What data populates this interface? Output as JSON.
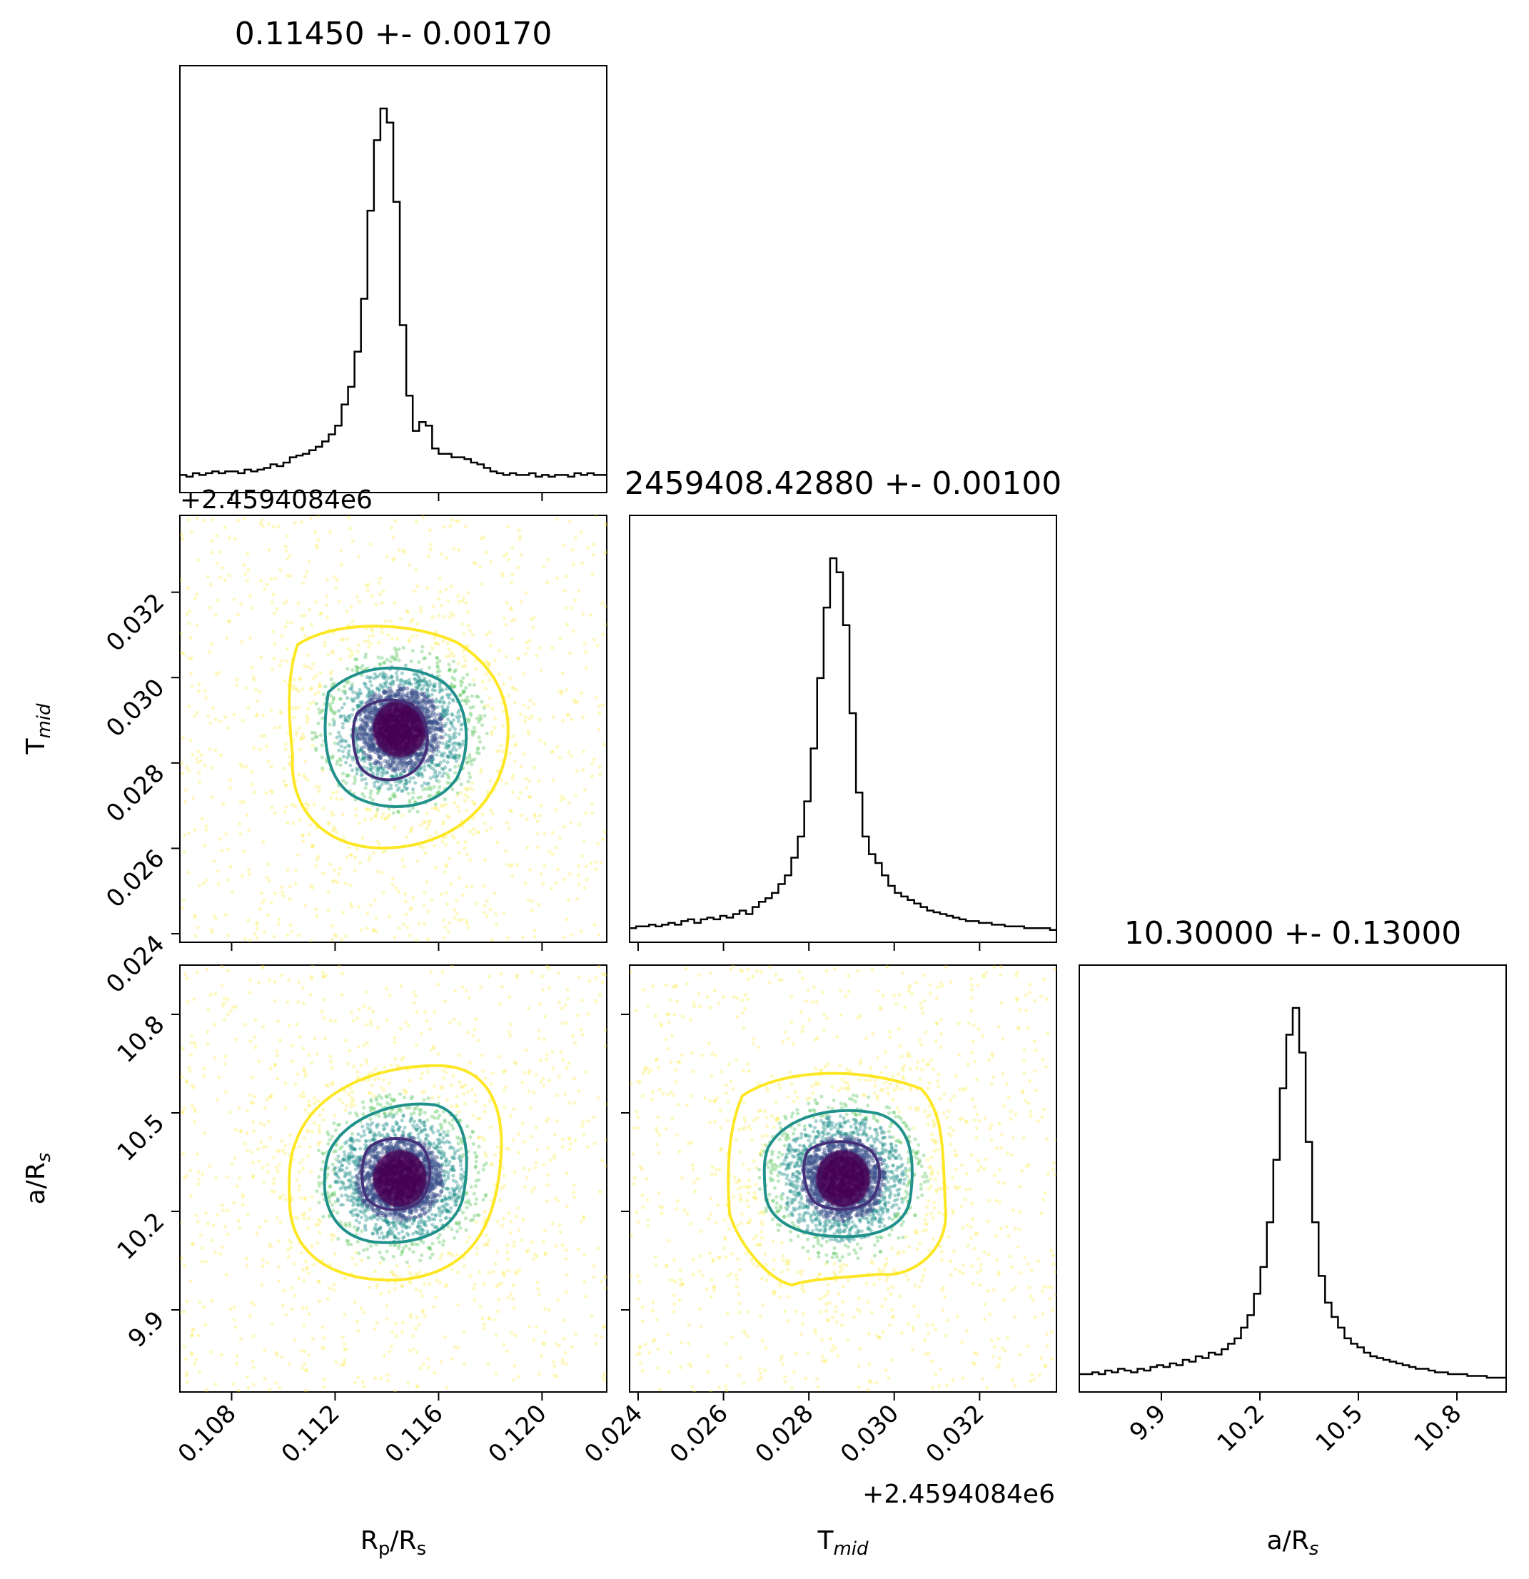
{
  "figure": {
    "type": "corner-plot",
    "x_axis_labels": [
      "R",
      "T",
      "a/R"
    ],
    "y_axis_labels": [
      "T",
      "a/R"
    ]
  },
  "labels": {
    "rp_rs": {
      "main": "R",
      "sub1": "p",
      "mid": "/R",
      "sub2": "s"
    },
    "tmid": {
      "main": "T",
      "sub1": "mid"
    },
    "a_rs": {
      "main": "a/R",
      "sub1": "s"
    }
  },
  "titles": {
    "rp_rs": "0.11450 +- 0.00170",
    "tmid": "2459408.42880 +- 0.00100",
    "a_rs": "10.30000 +- 0.13000"
  },
  "offsets": {
    "tmid_y": "+2.4594084e6",
    "tmid_x": "+2.4594084e6"
  },
  "colors": {
    "histogram": "#000000",
    "contour_inner": "#45307a",
    "contour_mid": "#21918c",
    "contour_outer": "#fde725",
    "points_core": "#440154"
  },
  "chart_data": {
    "type": "scatter",
    "subtype": "corner",
    "parameters": [
      {
        "name": "R_p/R_s",
        "mean": 0.1145,
        "sigma": 0.0017,
        "range": [
          0.106,
          0.1225
        ],
        "ticks": [
          0.108,
          0.112,
          0.116,
          0.12
        ],
        "tick_labels": [
          "0.108",
          "0.112",
          "0.116",
          "0.120"
        ]
      },
      {
        "name": "T_mid",
        "mean": 0.0288,
        "sigma": 0.001,
        "offset": 2459408.4,
        "range": [
          0.0238,
          0.0338
        ],
        "ticks": [
          0.024,
          0.026,
          0.028,
          0.03,
          0.032
        ],
        "tick_labels": [
          "0.024",
          "0.026",
          "0.028",
          "0.030",
          "0.032"
        ]
      },
      {
        "name": "a/R_s",
        "mean": 10.3,
        "sigma": 0.13,
        "range": [
          9.65,
          10.95
        ],
        "ticks": [
          9.9,
          10.2,
          10.5,
          10.8
        ],
        "tick_labels": [
          "9.9",
          "10.2",
          "10.5",
          "10.8"
        ]
      }
    ],
    "histograms": {
      "rp_rs": [
        10,
        9,
        11,
        10,
        11,
        12,
        11,
        12,
        12,
        11,
        13,
        12,
        13,
        14,
        16,
        15,
        17,
        20,
        21,
        22,
        24,
        26,
        29,
        33,
        38,
        50,
        60,
        80,
        110,
        160,
        200,
        218,
        210,
        165,
        95,
        55,
        35,
        40,
        38,
        25,
        22,
        22,
        20,
        20,
        19,
        17,
        16,
        14,
        12,
        11,
        10,
        11,
        10,
        10,
        11,
        9,
        10,
        9,
        10,
        10,
        9,
        11,
        10,
        11,
        10,
        10
      ],
      "tmid": [
        8,
        9,
        9,
        10,
        9,
        10,
        11,
        10,
        12,
        13,
        11,
        13,
        14,
        13,
        15,
        14,
        16,
        18,
        16,
        20,
        23,
        25,
        28,
        33,
        38,
        48,
        60,
        80,
        110,
        150,
        190,
        218,
        210,
        180,
        130,
        85,
        60,
        50,
        45,
        38,
        32,
        28,
        26,
        24,
        22,
        20,
        18,
        17,
        16,
        15,
        14,
        13,
        12,
        12,
        11,
        11,
        10,
        10,
        9,
        9,
        9,
        8,
        8,
        8,
        8,
        7
      ],
      "a_rs": [
        10,
        10,
        11,
        10,
        12,
        11,
        13,
        12,
        11,
        13,
        12,
        14,
        15,
        14,
        16,
        15,
        18,
        17,
        20,
        19,
        22,
        21,
        24,
        27,
        30,
        36,
        43,
        55,
        70,
        95,
        130,
        170,
        200,
        215,
        190,
        140,
        95,
        65,
        50,
        42,
        36,
        30,
        27,
        25,
        22,
        20,
        19,
        18,
        17,
        16,
        15,
        14,
        13,
        13,
        12,
        11,
        11,
        10,
        10,
        10,
        9,
        9,
        9,
        8,
        8,
        8
      ]
    },
    "contour_levels": [
      "0.5 sigma",
      "1 sigma",
      "2 sigma"
    ]
  }
}
